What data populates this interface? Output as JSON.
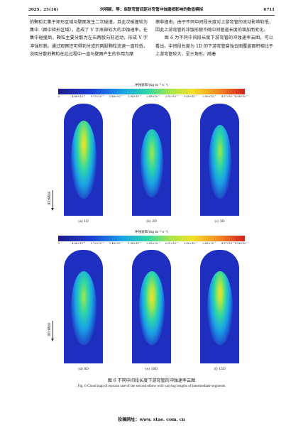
{
  "header": {
    "left": "2025，25(16)",
    "center": "刘明颖，等：串联弯管间距对弯管冲蚀磨损影响的数值模拟",
    "right": "6711"
  },
  "body": {
    "left_col": "的颗粒汇集于矩形区域与壁面发生二次碰撞，且此次碰撞较为集中（图中矩形区域），造成了 V 字底部较大的冲蚀速率。在集中碰撞后，颗粒主要分散为左右两股向前运动，形成 V 字冲蚀形貌。通过观察还可得到分成的两股颗粒流速一直较低，说明分散的颗粒在此过程中一直与壁面产生的作用为摩",
    "right_col": "擦非撞击。由于不同中间段长度对上游弯管的流动影响较低，因此上游弯管的冲蚀形貌不随中间管道长度的增加而变化。\n图 6 为不同中间段长度下游弯管的冲蚀速率云图，可以看出，中间段长度为 1D 的下游弯管腐蚀云图覆盖面积相比于上游弯管较大，呈三角形。随着"
  },
  "figure": {
    "colorbar_title_top": "冲蚀速率/(kg·m⁻²·s⁻¹)",
    "colorbar_title_bottom": "冲蚀速率/(kg·m⁻²·s⁻¹)",
    "colorbar_ticks": [
      "0",
      "4.86×10⁻⁸",
      "9.72×10⁻⁸",
      "1.46×10⁻⁷",
      "1.94×10⁻⁷",
      "2.43×10⁻⁷",
      "2.91×10⁻⁷",
      "3.40×10⁻⁷",
      "3.89×10⁻⁷",
      "4.37×10⁻⁷",
      "4.86×10⁻⁷"
    ],
    "flow_label": "流动方向",
    "top_panels": [
      "(a) 1D",
      "(b) 2D",
      "(c) 5D"
    ],
    "bottom_panels": [
      "(d) 8D",
      "(e) 10D",
      "(f) 15D"
    ],
    "caption_cn": "图 6   不同中间段长度下游弯管的冲蚀速率云图",
    "caption_en": "Fig. 6   Cloud map of erosion rate of the second elbow with varying lengths of intermediate segments"
  },
  "footer": "投稿网址：www. stae. com. cn"
}
